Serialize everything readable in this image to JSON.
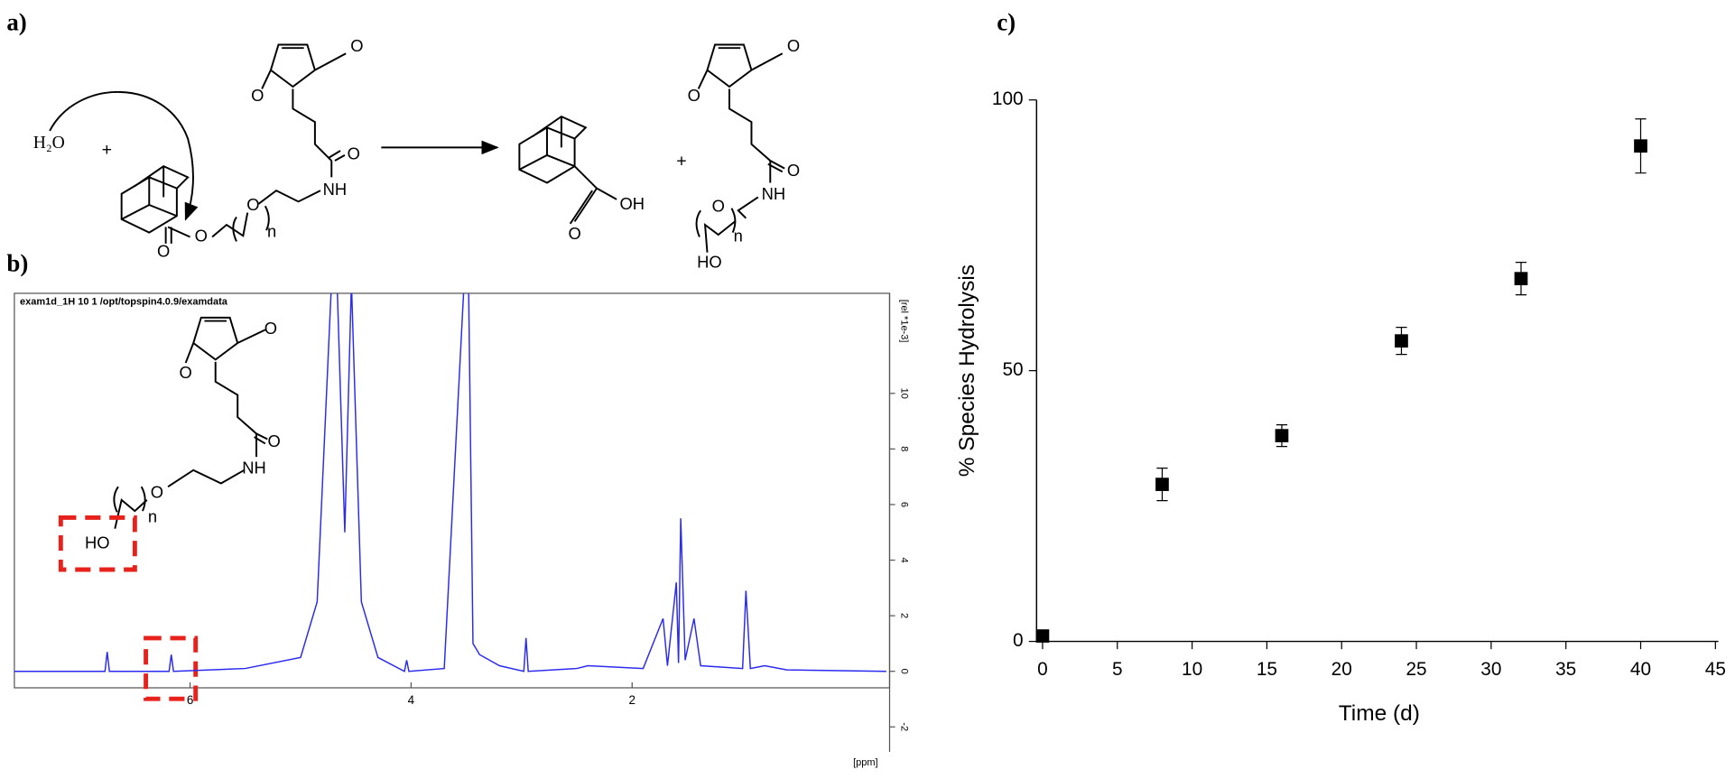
{
  "scheme": {
    "panel_label": "a)",
    "water": "H₂O",
    "plus": "+",
    "reactant_atoms": [
      "O",
      "O",
      "O",
      "NH",
      "O",
      "n",
      "O",
      "O"
    ],
    "acid_atoms": [
      "OH",
      "O"
    ],
    "product_atoms": [
      "O",
      "O",
      "O",
      "NH",
      "O",
      "n",
      "HO"
    ]
  },
  "spectrum_panel": {
    "panel_label": "b)",
    "inset_atoms": [
      "O",
      "O",
      "O",
      "NH",
      "O",
      "n",
      "HO"
    ]
  },
  "plot_panel": {
    "panel_label": "c)"
  },
  "chart_data": [
    {
      "type": "line",
      "header": "exam1d_1H  10  1  /opt/topspin4.0.9/examdata",
      "x_label": "[ppm]",
      "y_label": "[rel *1e-3]",
      "x": [
        7.6,
        6.77,
        6.75,
        6.73,
        6.19,
        6.17,
        6.15,
        5.5,
        5.0,
        4.85,
        4.72,
        4.67,
        4.6,
        4.54,
        4.45,
        4.3,
        4.06,
        4.04,
        4.02,
        3.7,
        3.52,
        3.48,
        3.44,
        3.38,
        3.2,
        2.98,
        2.96,
        2.94,
        2.5,
        2.4,
        1.9,
        1.72,
        1.68,
        1.6,
        1.58,
        1.56,
        1.52,
        1.44,
        1.38,
        1.0,
        0.97,
        0.93,
        0.8,
        0.6,
        -0.3
      ],
      "series": [
        {
          "name": "1H",
          "color": "#2b2bf0",
          "values": [
            0,
            0,
            0.7,
            0,
            0,
            0.6,
            0,
            0.1,
            0.5,
            2.5,
            14,
            14,
            5,
            14,
            2.5,
            0.5,
            0,
            0.4,
            0,
            0.1,
            14,
            14,
            1,
            0.6,
            0.2,
            0,
            1.2,
            0,
            0.1,
            0.2,
            0.1,
            1.9,
            0.2,
            3.2,
            0.3,
            5.5,
            0.4,
            1.9,
            0.2,
            0.1,
            2.9,
            0.1,
            0.2,
            0.05,
            0
          ]
        }
      ],
      "xlim": [
        7.59,
        -0.33
      ],
      "ylim": [
        -2.9,
        13.6
      ],
      "xticks": [
        6,
        4,
        2
      ],
      "yticks": [
        -2,
        0,
        2,
        4,
        6,
        8,
        10
      ]
    },
    {
      "type": "scatter",
      "x_label": "Time (d)",
      "y_label": "% Species Hydrolysis",
      "x": [
        0,
        8,
        16,
        24,
        32,
        40
      ],
      "values": [
        1,
        29,
        38,
        55.5,
        67,
        91.5
      ],
      "errors": [
        0,
        3,
        2,
        2.5,
        3,
        5
      ],
      "color": "#000000",
      "xlim": [
        -0.4,
        45.2
      ],
      "ylim": [
        0,
        100
      ],
      "xticks": [
        0,
        5,
        10,
        15,
        20,
        25,
        30,
        35,
        40,
        45
      ],
      "yticks": [
        0,
        50,
        100
      ]
    }
  ]
}
